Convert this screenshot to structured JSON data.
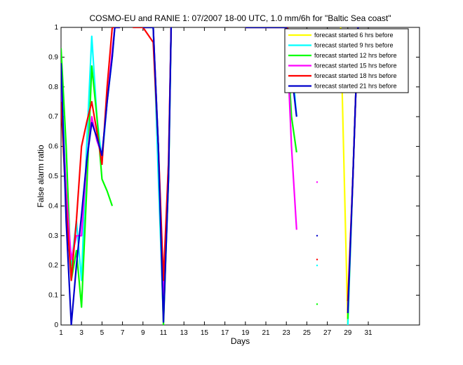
{
  "chart_data": {
    "type": "line",
    "title": "COSMO-EU and RANIE 1: 07/2007 18-00 UTC, 1.0 mm/6h for \"Baltic Sea coast\"",
    "xlabel": "Days",
    "ylabel": "False alarm ratio",
    "xlim": [
      1,
      36
    ],
    "ylim": [
      0,
      1
    ],
    "xticks": [
      1,
      3,
      5,
      7,
      9,
      11,
      13,
      15,
      17,
      19,
      21,
      23,
      25,
      27,
      29,
      31
    ],
    "yticks": [
      0,
      0.1,
      0.2,
      0.3,
      0.4,
      0.5,
      0.6,
      0.7,
      0.8,
      0.9,
      1
    ],
    "grid": false,
    "legend_position": "top-right",
    "series": [
      {
        "name": "forecast started 6 hrs before",
        "color": "#ffff00",
        "points": [
          [
            28.3,
            1
          ],
          [
            29,
            0
          ]
        ]
      },
      {
        "name": "forecast started 9 hrs before",
        "color": "#00ffff",
        "points": [
          [
            1,
            0.85
          ],
          [
            1.5,
            0.45
          ],
          [
            2,
            0.2
          ],
          [
            2.5,
            0.35
          ],
          [
            3,
            0.15
          ],
          [
            3.5,
            0.6
          ],
          [
            4,
            0.97
          ],
          [
            4.5,
            0.7
          ],
          [
            5,
            0.55
          ],
          [
            5.5,
            0.75
          ],
          [
            6,
            0.9
          ],
          [
            6.25,
            1
          ],
          [
            6.75,
            1
          ],
          [
            null,
            null
          ],
          [
            9,
            1
          ],
          [
            10,
            1
          ],
          [
            10.5,
            0.5
          ],
          [
            11,
            0.02
          ],
          [
            11.5,
            0.5
          ],
          [
            11.75,
            1
          ],
          [
            null,
            null
          ],
          [
            19,
            1
          ],
          [
            23,
            1
          ],
          [
            23.5,
            0.9
          ],
          [
            24,
            0.7
          ],
          [
            null,
            null
          ],
          [
            26,
            0.2
          ],
          [
            null,
            null
          ],
          [
            29,
            0
          ],
          [
            29.5,
            0.5
          ],
          [
            30,
            1
          ]
        ]
      },
      {
        "name": "forecast started 12 hrs before",
        "color": "#00ff00",
        "points": [
          [
            1,
            0.93
          ],
          [
            1.5,
            0.6
          ],
          [
            2,
            0.15
          ],
          [
            2.5,
            0.25
          ],
          [
            3,
            0.06
          ],
          [
            3.5,
            0.45
          ],
          [
            4,
            0.87
          ],
          [
            4.5,
            0.7
          ],
          [
            5,
            0.49
          ],
          [
            5.5,
            0.45
          ],
          [
            6,
            0.4
          ],
          [
            null,
            null
          ],
          [
            9,
            1
          ],
          [
            10,
            1
          ],
          [
            10.5,
            0.6
          ],
          [
            11,
            0.0
          ],
          [
            11.5,
            0.5
          ],
          [
            11.75,
            1
          ],
          [
            null,
            null
          ],
          [
            19,
            1
          ],
          [
            23,
            1
          ],
          [
            23.5,
            0.7
          ],
          [
            24,
            0.58
          ],
          [
            null,
            null
          ],
          [
            26,
            0.07
          ],
          [
            null,
            null
          ],
          [
            29,
            0.02
          ],
          [
            29.5,
            0.5
          ],
          [
            30,
            1
          ]
        ]
      },
      {
        "name": "forecast started 15 hrs before",
        "color": "#ff00ff",
        "points": [
          [
            1,
            0.8
          ],
          [
            1.5,
            0.45
          ],
          [
            2,
            0.22
          ],
          [
            2.5,
            0.3
          ],
          [
            3,
            0.3
          ],
          [
            3.5,
            0.55
          ],
          [
            4,
            0.7
          ],
          [
            4.5,
            0.62
          ],
          [
            5,
            0.57
          ],
          [
            5.5,
            0.75
          ],
          [
            6,
            0.92
          ],
          [
            6.25,
            1
          ],
          [
            6.75,
            1
          ],
          [
            null,
            null
          ],
          [
            9,
            1
          ],
          [
            10,
            1
          ],
          [
            10.5,
            0.6
          ],
          [
            11,
            0.1
          ],
          [
            11.5,
            0.55
          ],
          [
            11.75,
            1
          ],
          [
            null,
            null
          ],
          [
            19,
            1
          ],
          [
            23,
            1
          ],
          [
            23.5,
            0.6
          ],
          [
            24,
            0.32
          ],
          [
            null,
            null
          ],
          [
            26,
            0.48
          ],
          [
            null,
            null
          ],
          [
            29,
            0.05
          ],
          [
            29.5,
            0.5
          ],
          [
            30,
            1
          ]
        ]
      },
      {
        "name": "forecast started 18 hrs before",
        "color": "#ff0000",
        "points": [
          [
            1,
            0.75
          ],
          [
            1.5,
            0.4
          ],
          [
            2,
            0.15
          ],
          [
            2.5,
            0.35
          ],
          [
            3,
            0.6
          ],
          [
            3.5,
            0.68
          ],
          [
            4,
            0.75
          ],
          [
            4.5,
            0.65
          ],
          [
            5,
            0.54
          ],
          [
            5.5,
            0.8
          ],
          [
            6,
            1
          ],
          [
            6.75,
            1
          ],
          [
            null,
            null
          ],
          [
            8,
            1
          ],
          [
            9,
            1
          ],
          [
            10,
            0.95
          ],
          [
            10.5,
            0.6
          ],
          [
            11,
            0.15
          ],
          [
            11.5,
            0.55
          ],
          [
            11.75,
            1
          ],
          [
            null,
            null
          ],
          [
            19,
            1
          ],
          [
            23,
            1
          ],
          [
            24,
            0.97
          ],
          [
            null,
            null
          ],
          [
            26,
            0.22
          ],
          [
            null,
            null
          ],
          [
            29,
            0.08
          ],
          [
            29.5,
            0.5
          ],
          [
            30,
            1
          ]
        ]
      },
      {
        "name": "forecast started 21 hrs before",
        "color": "#0000cc",
        "points": [
          [
            1,
            0.88
          ],
          [
            1.5,
            0.35
          ],
          [
            2,
            0.0
          ],
          [
            2.5,
            0.2
          ],
          [
            3,
            0.37
          ],
          [
            3.5,
            0.55
          ],
          [
            4,
            0.68
          ],
          [
            4.5,
            0.63
          ],
          [
            5,
            0.57
          ],
          [
            5.5,
            0.75
          ],
          [
            6,
            0.9
          ],
          [
            6.25,
            1
          ],
          [
            6.75,
            1
          ],
          [
            null,
            null
          ],
          [
            9,
            1
          ],
          [
            10,
            1
          ],
          [
            10.5,
            0.6
          ],
          [
            11,
            0.01
          ],
          [
            11.5,
            0.5
          ],
          [
            11.75,
            1
          ],
          [
            null,
            null
          ],
          [
            19,
            1
          ],
          [
            23,
            1
          ],
          [
            23.5,
            0.85
          ],
          [
            24,
            0.7
          ],
          [
            null,
            null
          ],
          [
            26,
            0.3
          ],
          [
            null,
            null
          ],
          [
            29,
            0.04
          ],
          [
            29.5,
            0.5
          ],
          [
            30,
            1
          ]
        ]
      }
    ]
  }
}
